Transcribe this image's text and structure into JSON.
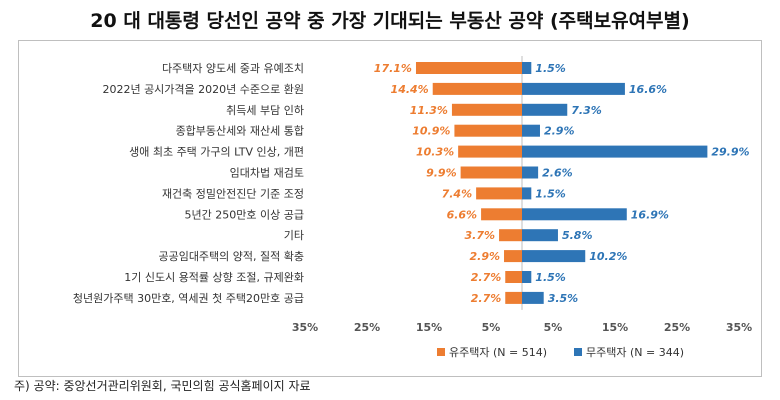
{
  "title": "20 대 대통령 당선인 공약 중 가장 기대되는 부동산 공약 (주택보유여부별)",
  "source_note": "주) 공약: 중앙선거관리위원회, 국민의힘 공식홈페이지 자료",
  "colors": {
    "owner": "#ED7D31",
    "non_owner": "#2E75B6",
    "axis": "#bfbfbf"
  },
  "chart_data": {
    "type": "bar",
    "orientation": "horizontal-diverging",
    "categories": [
      "다주택자 양도세 중과 유예조치",
      "2022년 공시가격을 2020년 수준으로 환원",
      "취득세 부담 인하",
      "종합부동산세와 재산세 통합",
      "생애 최초 주택 가구의 LTV 인상, 개편",
      "임대차법 재검토",
      "재건축 정밀안전진단 기준 조정",
      "5년간 250만호 이상 공급",
      "기타",
      "공공임대주택의 양적, 질적 확충",
      "1기 신도시 용적률 상향 조절, 규제완화",
      "청년원가주택 30만호, 역세권 첫 주택20만호 공급"
    ],
    "series": [
      {
        "name": "유주택자 (N = 514)",
        "values": [
          17.1,
          14.4,
          11.3,
          10.9,
          10.3,
          9.9,
          7.4,
          6.6,
          3.7,
          2.9,
          2.7,
          2.7
        ],
        "labels": [
          "17.1%",
          "14.4%",
          "11.3%",
          "10.9%",
          "10.3%",
          "9.9%",
          "7.4%",
          "6.6%",
          "3.7%",
          "2.9%",
          "2.7%",
          "2.7%"
        ]
      },
      {
        "name": "무주택자 (N = 344)",
        "values": [
          1.5,
          16.6,
          7.3,
          2.9,
          29.9,
          2.6,
          1.5,
          16.9,
          5.8,
          10.2,
          1.5,
          3.5
        ],
        "labels": [
          "1.5%",
          "16.6%",
          "7.3%",
          "2.9%",
          "29.9%",
          "2.6%",
          "1.5%",
          "16.9%",
          "5.8%",
          "10.2%",
          "1.5%",
          "3.5%"
        ]
      }
    ],
    "xtick_labels": [
      "35%",
      "25%",
      "15%",
      "5%",
      "5%",
      "15%",
      "25%",
      "35%"
    ],
    "xticks": [
      -35,
      -25,
      -15,
      -5,
      5,
      15,
      25,
      35
    ],
    "xlim": [
      -35,
      35
    ],
    "legend_position": "bottom",
    "grid": false
  }
}
